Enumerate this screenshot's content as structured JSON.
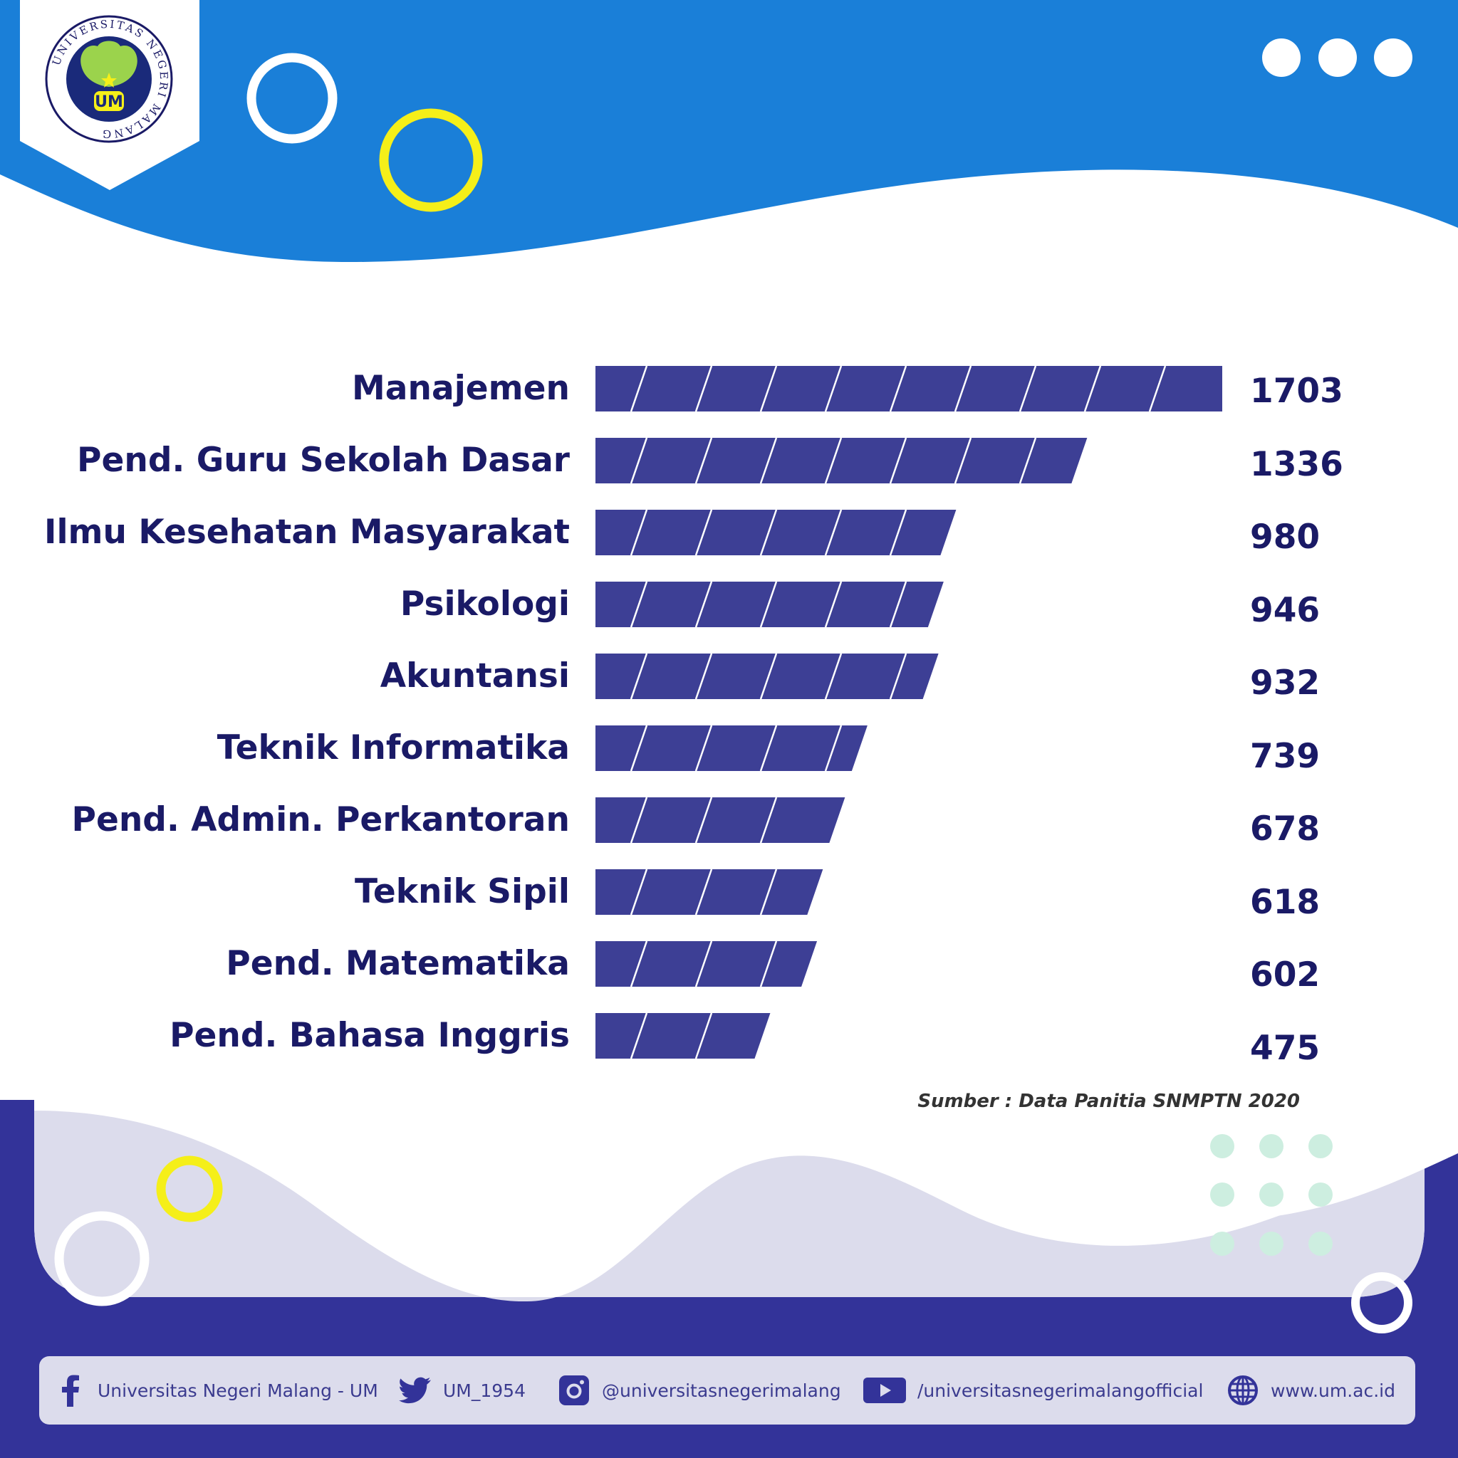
{
  "header": {
    "logo": {
      "ring_text": "UNIVERSITAS NEGERI MALANG",
      "mark_text": "UM"
    },
    "menu_dots_icon": "three-dots-icon"
  },
  "colors": {
    "bar": "#3d3f95",
    "label": "#1a1a66",
    "blue": "#1a7fd8",
    "navy": "#333399",
    "lavender": "#dcdcec",
    "yellow": "#f5ef19"
  },
  "chart_data": {
    "type": "bar",
    "orientation": "horizontal",
    "categories": [
      "Manajemen",
      "Pend. Guru Sekolah Dasar",
      "Ilmu Kesehatan Masyarakat",
      "Psikologi",
      "Akuntansi",
      "Teknik Informatika",
      "Pend. Admin. Perkantoran",
      "Teknik Sipil",
      "Pend. Matematika",
      "Pend. Bahasa Inggris"
    ],
    "values": [
      1703,
      1336,
      980,
      946,
      932,
      739,
      678,
      618,
      602,
      475
    ],
    "value_labels": [
      "1703",
      "1336",
      "980",
      "946",
      "932",
      "739",
      "678",
      "618",
      "602",
      "475"
    ],
    "legend": "none",
    "grid": false
  },
  "source_note": "Sumber : Data Panitia SNMPTN 2020",
  "footer": {
    "items": [
      {
        "icon": "facebook-icon",
        "text": "Universitas Negeri Malang - UM"
      },
      {
        "icon": "twitter-icon",
        "text": "UM_1954"
      },
      {
        "icon": "instagram-icon",
        "text": "@universitasnegerimalang"
      },
      {
        "icon": "youtube-icon",
        "text": "/universitasnegerimalangofficial"
      },
      {
        "icon": "globe-icon",
        "text": "www.um.ac.id"
      }
    ]
  }
}
